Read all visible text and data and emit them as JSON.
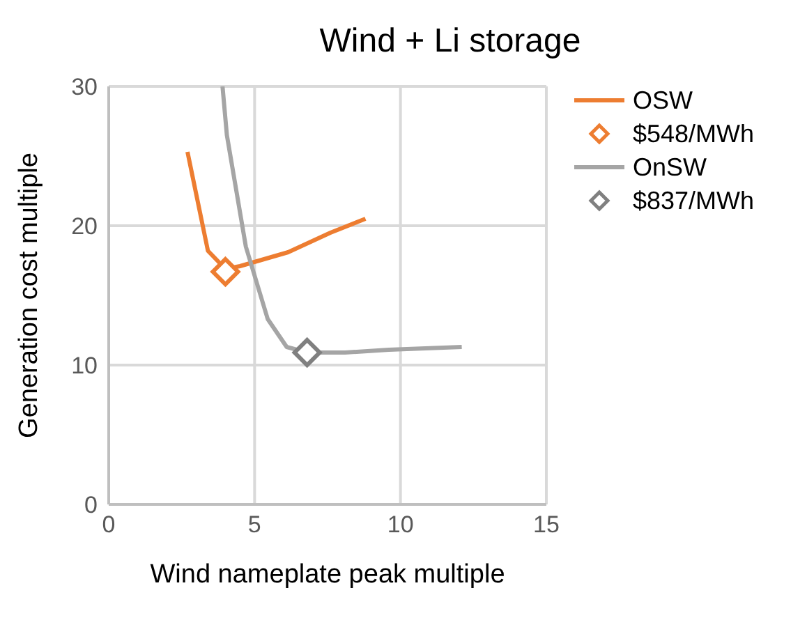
{
  "chart_data": {
    "type": "line",
    "title": "Wind + Li storage",
    "xlabel": "Wind nameplate peak multiple",
    "ylabel": "Generation cost multiple",
    "xlim": [
      0,
      15
    ],
    "xticks": [
      0,
      5,
      10,
      15
    ],
    "ylim": [
      0,
      30
    ],
    "yticks": [
      0,
      10,
      20,
      30
    ],
    "grid": true,
    "legend": "top right",
    "marker": "none",
    "line_style": "solid",
    "series": [
      {
        "name": "OSW",
        "color": "#ed7d31",
        "x": [
          2.7,
          3.4,
          4.0,
          4.5,
          6.15,
          7.6,
          8.8
        ],
        "values": [
          25.3,
          18.2,
          16.9,
          17.1,
          18.1,
          19.5,
          20.5
        ]
      },
      {
        "name": "$548/MWh",
        "type": "scatter",
        "marker": "diamond",
        "color": "#ed7d31",
        "x": [
          4.0
        ],
        "values": [
          16.7
        ]
      },
      {
        "name": "OnSW",
        "color": "#a5a5a5",
        "x": [
          3.9,
          4.05,
          4.7,
          5.45,
          6.1,
          6.8,
          8.1,
          9.6,
          12.1
        ],
        "values": [
          30,
          26.5,
          18.5,
          13.3,
          11.3,
          10.9,
          10.9,
          11.1,
          11.3
        ]
      },
      {
        "name": "$837/MWh",
        "type": "scatter",
        "marker": "diamond",
        "color": "#808080",
        "x": [
          6.8
        ],
        "values": [
          10.9
        ]
      }
    ]
  }
}
